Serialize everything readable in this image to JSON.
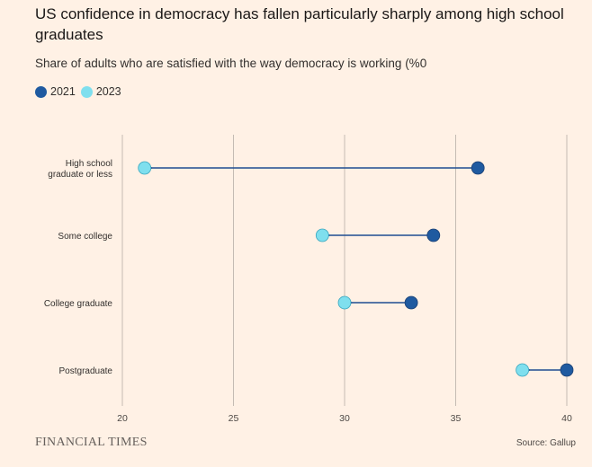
{
  "chart_data": {
    "type": "dumbbell",
    "title": "US confidence in democracy has fallen particularly sharply among high school graduates",
    "subtitle": "Share of adults who are satisfied with the way democracy is working (%0",
    "legend_placement": "top-left",
    "grid": true,
    "xlim": [
      20,
      40
    ],
    "xticks": [
      "20",
      "25",
      "30",
      "35",
      "40"
    ],
    "categories": [
      "High school graduate or less",
      "Some college",
      "College graduate",
      "Postgraduate"
    ],
    "category_lines": [
      [
        "High school",
        "graduate or less"
      ],
      [
        "Some college"
      ],
      [
        "College graduate"
      ],
      [
        "Postgraduate"
      ]
    ],
    "series": [
      {
        "name": "2021",
        "color": "#1f5aa0",
        "values": [
          36,
          34,
          33,
          40
        ]
      },
      {
        "name": "2023",
        "color": "#7fdfee",
        "values": [
          21,
          29,
          30,
          38
        ]
      }
    ],
    "arrow_color": "#1f4e91"
  },
  "footer": {
    "brand": "FINANCIAL TIMES",
    "source": "Source: Gallup"
  }
}
